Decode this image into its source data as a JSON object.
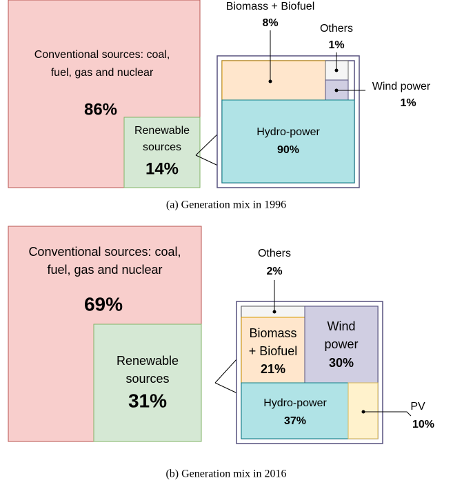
{
  "panels": [
    {
      "caption": "(a) Generation mix in 1996",
      "conventional": {
        "lines": [
          "Conventional sources: coal,",
          "fuel, gas and nuclear"
        ],
        "share": "86%"
      },
      "renewable": {
        "lines": [
          "Renewable",
          "sources"
        ],
        "share": "14%"
      },
      "breakdown": [
        {
          "label": "Biomass + Biofuel",
          "share": "8%"
        },
        {
          "label": "Others",
          "share": "1%"
        },
        {
          "label": "Wind power",
          "share": "1%"
        },
        {
          "label": "Hydro-power",
          "share": "90%"
        }
      ]
    },
    {
      "caption": "(b) Generation mix in 2016",
      "conventional": {
        "lines": [
          "Conventional sources: coal,",
          "fuel, gas and nuclear"
        ],
        "share": "69%"
      },
      "renewable": {
        "lines": [
          "Renewable",
          "sources"
        ],
        "share": "31%"
      },
      "breakdown": [
        {
          "label": "Others",
          "share": "2%"
        },
        {
          "label": [
            "Biomass",
            "+ Biofuel"
          ],
          "share": "21%"
        },
        {
          "label": [
            "Wind",
            "power"
          ],
          "share": "30%"
        },
        {
          "label": "Hydro-power",
          "share": "37%"
        },
        {
          "label": "PV",
          "share": "10%"
        }
      ]
    }
  ]
}
